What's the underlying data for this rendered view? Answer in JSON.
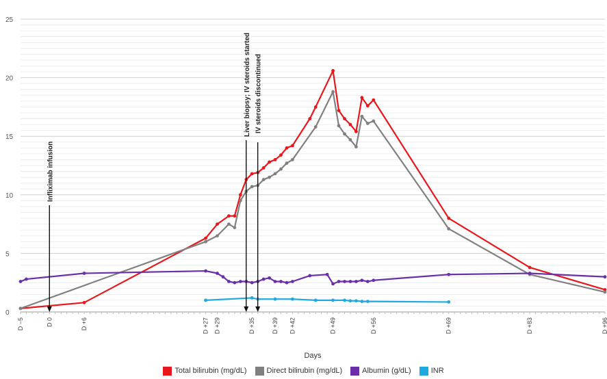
{
  "chart_data": {
    "type": "line",
    "xlabel": "Days",
    "ylim": [
      0,
      25
    ],
    "yticks": [
      0,
      5,
      10,
      15,
      20,
      25
    ],
    "ytick_labels": [
      "0",
      "5",
      "10",
      "15",
      "20",
      "25"
    ],
    "xlim": [
      -5,
      96
    ],
    "xticks": [
      {
        "value": -5,
        "label": "D −5"
      },
      {
        "value": 0,
        "label": "D 0"
      },
      {
        "value": 6,
        "label": "D +6"
      },
      {
        "value": 27,
        "label": "D +27"
      },
      {
        "value": 29,
        "label": "D +29"
      },
      {
        "value": 35,
        "label": "D +35"
      },
      {
        "value": 39,
        "label": "D +39"
      },
      {
        "value": 42,
        "label": "D +42"
      },
      {
        "value": 49,
        "label": "D +49"
      },
      {
        "value": 56,
        "label": "D +56"
      },
      {
        "value": 69,
        "label": "D +69"
      },
      {
        "value": 83,
        "label": "D +83"
      },
      {
        "value": 96,
        "label": "D +96"
      }
    ],
    "grid": true,
    "legend_position": "bottom",
    "series": [
      {
        "name": "Total bilirubin (mg/dL)",
        "color": "#e8171b",
        "x": [
          -5,
          6,
          27,
          29,
          31,
          32,
          33,
          34,
          35,
          36,
          37,
          38,
          39,
          40,
          41,
          42,
          45,
          46,
          49,
          50,
          51,
          52,
          53,
          54,
          55,
          56,
          69,
          83,
          96
        ],
        "y": [
          0.3,
          0.8,
          6.3,
          7.5,
          8.2,
          8.2,
          10.0,
          11.3,
          11.8,
          11.9,
          12.3,
          12.8,
          13.0,
          13.4,
          14.0,
          14.2,
          16.5,
          17.5,
          20.6,
          17.2,
          16.5,
          16.0,
          15.4,
          18.3,
          17.6,
          18.1,
          8.0,
          3.8,
          1.9
        ]
      },
      {
        "name": "Direct bilirubin (mg/dL)",
        "color": "#808080",
        "x": [
          -5,
          27,
          29,
          31,
          32,
          33,
          34,
          35,
          36,
          37,
          38,
          39,
          40,
          41,
          42,
          46,
          49,
          50,
          51,
          52,
          53,
          54,
          55,
          56,
          69,
          83,
          96
        ],
        "y": [
          0.3,
          6.0,
          6.5,
          7.5,
          7.2,
          9.5,
          10.3,
          10.7,
          10.8,
          11.3,
          11.5,
          11.8,
          12.2,
          12.7,
          13.0,
          15.8,
          18.8,
          15.9,
          15.2,
          14.7,
          14.1,
          16.7,
          16.1,
          16.3,
          7.1,
          3.2,
          1.7
        ]
      },
      {
        "name": "Albumin (g/dL)",
        "color": "#6a2fa8",
        "x": [
          -5,
          -4,
          6,
          27,
          29,
          30,
          31,
          32,
          33,
          34,
          35,
          36,
          37,
          38,
          39,
          40,
          41,
          42,
          45,
          48,
          49,
          50,
          51,
          52,
          53,
          54,
          55,
          56,
          69,
          83,
          96
        ],
        "y": [
          2.6,
          2.8,
          3.3,
          3.5,
          3.3,
          3.0,
          2.6,
          2.5,
          2.6,
          2.6,
          2.5,
          2.6,
          2.8,
          2.9,
          2.6,
          2.6,
          2.5,
          2.6,
          3.1,
          3.2,
          2.4,
          2.6,
          2.6,
          2.6,
          2.6,
          2.7,
          2.6,
          2.7,
          3.2,
          3.3,
          3.0
        ]
      },
      {
        "name": "INR",
        "color": "#1fa9e0",
        "x": [
          27,
          35,
          36,
          39,
          42,
          46,
          49,
          51,
          52,
          53,
          54,
          55,
          69
        ],
        "y": [
          1.0,
          1.2,
          1.1,
          1.1,
          1.1,
          1.0,
          1.0,
          1.0,
          0.95,
          0.95,
          0.9,
          0.9,
          0.85
        ]
      }
    ],
    "annotations": [
      {
        "x": 0,
        "text": "Infliximab infusion"
      },
      {
        "x": 34,
        "text": "Liver biopsy; IV steroids started"
      },
      {
        "x": 36,
        "text": "IV steroids discontinued"
      }
    ]
  },
  "legend": [
    {
      "label": "Total bilirubin (mg/dL)",
      "color": "#e8171b"
    },
    {
      "label": "Direct bilirubin (mg/dL)",
      "color": "#808080"
    },
    {
      "label": "Albumin (g/dL)",
      "color": "#6a2fa8"
    },
    {
      "label": "INR",
      "color": "#1fa9e0"
    }
  ]
}
